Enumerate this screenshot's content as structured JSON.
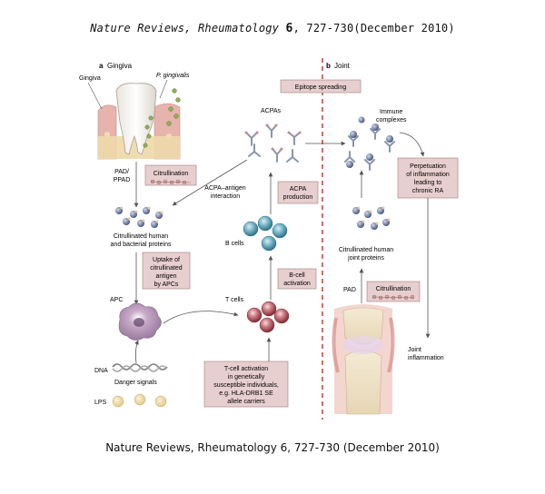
{
  "header": {
    "journal": "Nature Reviews, Rheumatology",
    "volume": "6",
    "rest": ", 727-730(December 2010)"
  },
  "caption": "Nature Reviews, Rheumatology 6, 727-730 (December 2010)",
  "panel_a": {
    "letter": "a",
    "title": "Gingiva",
    "gingiva": "Gingiva",
    "p_gingivalis": "P. gingivalis",
    "pad_ppad_1": "PAD/",
    "pad_ppad_2": "PPAD",
    "citrullination": "Citrullination",
    "acpa_antigen_1": "ACPA–antigen",
    "acpa_antigen_2": "interaction",
    "citrullinated_1": "Citrullinated human",
    "citrullinated_2": "and bacterial proteins",
    "uptake": [
      "Uptake of",
      "citrullinated",
      "antigen",
      "by APCs"
    ],
    "apc": "APC",
    "dna": "DNA",
    "danger": "Danger signals",
    "lps": "LPS"
  },
  "center": {
    "epitope": "Epitope spreading",
    "acpas": "ACPAs",
    "acpa_production": [
      "ACPA",
      "production"
    ],
    "b_cells": "B cells",
    "b_cell_activation": [
      "B-cell",
      "activation"
    ],
    "t_cells": "T cells",
    "t_cell_activation": [
      "T-cell activation",
      "in genetically",
      "susceptible individuals,",
      "e.g. HLA-DRB1 SE",
      "allele carriers"
    ]
  },
  "panel_b": {
    "letter": "b",
    "title": "Joint",
    "immune_complexes_1": "Immune",
    "immune_complexes_2": "complexes",
    "perpetuation": [
      "Perpetuation",
      "of inflammation",
      "leading to",
      "chronic RA"
    ],
    "citrullinated_1": "Citrullinated human",
    "citrullinated_2": "joint proteins",
    "pad": "PAD",
    "citrullination": "Citrullination",
    "joint_inflammation_1": "Joint",
    "joint_inflammation_2": "inflammation"
  },
  "colors": {
    "box_fill": "#e8cfcf",
    "box_stroke": "#9e7b7b",
    "divider": "#d8342c",
    "bcell": "#4f9bb0",
    "tcell": "#b5545c",
    "antibody": "#8a96a8",
    "arrow": "#555555"
  }
}
